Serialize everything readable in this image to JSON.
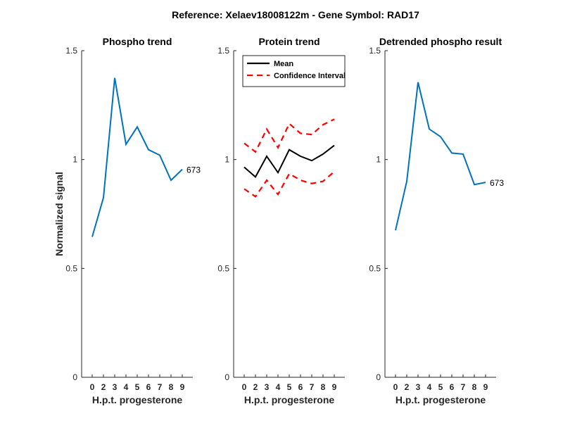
{
  "figure_title": "Reference:  Xelaev18008122m - Gene Symbol:  RAD17",
  "chart_data": [
    {
      "type": "line",
      "title": "Phospho trend",
      "xlabel": "H.p.t. progesterone",
      "ylabel": "Normalized signal",
      "categories": [
        "0",
        "2",
        "3",
        "4",
        "5",
        "6",
        "7",
        "8",
        "9"
      ],
      "ylim": [
        0,
        1.5
      ],
      "yticks": [
        "0",
        "0.5",
        "1",
        "1.5"
      ],
      "series": [
        {
          "values": [
            0.645,
            0.825,
            1.375,
            1.07,
            1.15,
            1.045,
            1.02,
            0.905,
            0.955
          ],
          "color": "#0072BD",
          "end_label": "673"
        }
      ]
    },
    {
      "type": "line",
      "title": "Protein trend",
      "xlabel": "H.p.t. progesterone",
      "categories": [
        "0",
        "2",
        "3",
        "4",
        "5",
        "6",
        "7",
        "8",
        "9"
      ],
      "ylim": [
        0,
        1.5
      ],
      "yticks": [
        "0",
        "0.5",
        "1",
        "1.5"
      ],
      "legend": {
        "position": "top-left"
      },
      "series": [
        {
          "name": "Mean",
          "values": [
            0.965,
            0.92,
            1.015,
            0.94,
            1.045,
            1.015,
            0.995,
            1.025,
            1.065
          ],
          "color": "#000000",
          "style": "solid"
        },
        {
          "name": "Confidence Interval",
          "values": [
            1.075,
            1.035,
            1.14,
            1.055,
            1.165,
            1.12,
            1.115,
            1.16,
            1.185
          ],
          "color": "#FF0000",
          "style": "dashed",
          "in_legend": true
        },
        {
          "name": "Confidence Interval",
          "values": [
            0.865,
            0.83,
            0.905,
            0.84,
            0.935,
            0.905,
            0.89,
            0.9,
            0.945
          ],
          "color": "#FF0000",
          "style": "dashed",
          "in_legend": false
        }
      ]
    },
    {
      "type": "line",
      "title": "Detrended phospho result",
      "xlabel": "H.p.t. progesterone",
      "categories": [
        "0",
        "2",
        "3",
        "4",
        "5",
        "6",
        "7",
        "8",
        "9"
      ],
      "ylim": [
        0,
        1.5
      ],
      "yticks": [
        "0",
        "0.5",
        "1",
        "1.5"
      ],
      "series": [
        {
          "values": [
            0.675,
            0.9,
            1.355,
            1.14,
            1.105,
            1.03,
            1.025,
            0.885,
            0.895
          ],
          "color": "#0072BD",
          "end_label": "673"
        }
      ]
    }
  ]
}
